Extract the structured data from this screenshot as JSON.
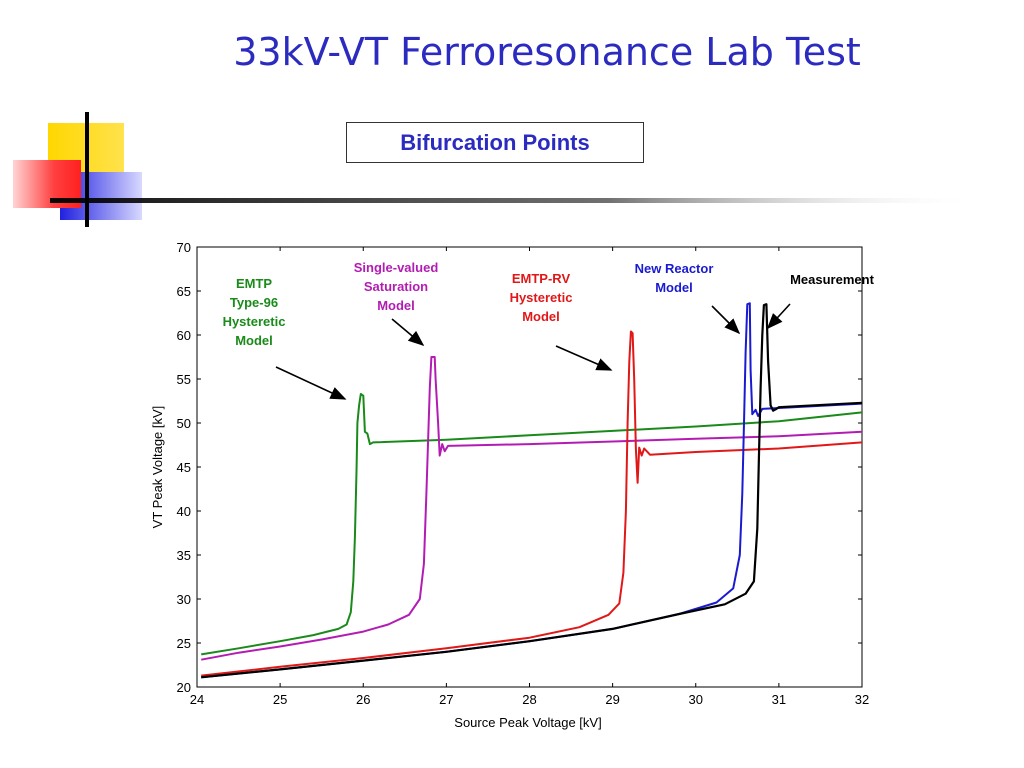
{
  "slide": {
    "title": "33kV-VT Ferroresonance Lab Test",
    "subtitle": "Bifurcation Points"
  },
  "colors": {
    "title": "#2b2bc0",
    "emtp_type96": "#1a8a1a",
    "single_valued": "#b31cb3",
    "emtp_rv": "#e01818",
    "new_reactor": "#1a1ad0",
    "measurement": "#000000"
  },
  "chart_data": {
    "type": "line",
    "xlabel": "Source Peak Voltage [kV]",
    "ylabel": "VT Peak Voltage [kV]",
    "xlim": [
      24,
      32
    ],
    "ylim": [
      20,
      70
    ],
    "xticks": [
      24,
      25,
      26,
      27,
      28,
      29,
      30,
      31,
      32
    ],
    "yticks": [
      20,
      25,
      30,
      35,
      40,
      45,
      50,
      55,
      60,
      65,
      70
    ],
    "grid": false,
    "series": [
      {
        "key": "emtp_type96",
        "color": "#1a8a1a",
        "points": [
          [
            24.05,
            23.7
          ],
          [
            24.5,
            24.4
          ],
          [
            25,
            25.2
          ],
          [
            25.4,
            25.9
          ],
          [
            25.7,
            26.6
          ],
          [
            25.8,
            27.1
          ],
          [
            25.85,
            28.5
          ],
          [
            25.88,
            32
          ],
          [
            25.9,
            37
          ],
          [
            25.92,
            45
          ],
          [
            25.93,
            50
          ],
          [
            25.95,
            52
          ],
          [
            25.97,
            53.3
          ],
          [
            26.0,
            53.1
          ],
          [
            26.02,
            49
          ],
          [
            26.05,
            48.8
          ],
          [
            26.08,
            47.6
          ],
          [
            26.12,
            47.8
          ],
          [
            27,
            48.1
          ],
          [
            28,
            48.6
          ],
          [
            29,
            49.1
          ],
          [
            30,
            49.6
          ],
          [
            31,
            50.2
          ],
          [
            32,
            51.2
          ]
        ]
      },
      {
        "key": "single_valued",
        "color": "#b31cb3",
        "points": [
          [
            24.05,
            23.1
          ],
          [
            24.5,
            23.9
          ],
          [
            25,
            24.6
          ],
          [
            25.5,
            25.4
          ],
          [
            26,
            26.3
          ],
          [
            26.3,
            27.1
          ],
          [
            26.55,
            28.2
          ],
          [
            26.68,
            30
          ],
          [
            26.73,
            34
          ],
          [
            26.76,
            42
          ],
          [
            26.78,
            48
          ],
          [
            26.8,
            54
          ],
          [
            26.82,
            57.5
          ],
          [
            26.86,
            57.5
          ],
          [
            26.87,
            55
          ],
          [
            26.9,
            50
          ],
          [
            26.92,
            46.3
          ],
          [
            26.95,
            47.6
          ],
          [
            26.98,
            46.8
          ],
          [
            27.02,
            47.4
          ],
          [
            28,
            47.6
          ],
          [
            29,
            47.9
          ],
          [
            30,
            48.2
          ],
          [
            31,
            48.5
          ],
          [
            32,
            49.0
          ]
        ]
      },
      {
        "key": "emtp_rv",
        "color": "#e01818",
        "points": [
          [
            24.05,
            21.3
          ],
          [
            25,
            22.3
          ],
          [
            26,
            23.3
          ],
          [
            27,
            24.4
          ],
          [
            28,
            25.6
          ],
          [
            28.6,
            26.8
          ],
          [
            28.95,
            28.2
          ],
          [
            29.08,
            29.5
          ],
          [
            29.13,
            33
          ],
          [
            29.16,
            40
          ],
          [
            29.18,
            50
          ],
          [
            29.2,
            57
          ],
          [
            29.22,
            60.4
          ],
          [
            29.24,
            60.2
          ],
          [
            29.26,
            55
          ],
          [
            29.28,
            47
          ],
          [
            29.3,
            43.2
          ],
          [
            29.32,
            47.2
          ],
          [
            29.35,
            46.3
          ],
          [
            29.38,
            47.1
          ],
          [
            29.45,
            46.4
          ],
          [
            30,
            46.7
          ],
          [
            31,
            47.1
          ],
          [
            32,
            47.8
          ]
        ]
      },
      {
        "key": "new_reactor",
        "color": "#1a1ad0",
        "points": [
          [
            24.05,
            21.1
          ],
          [
            25,
            22.0
          ],
          [
            26,
            23.0
          ],
          [
            27,
            24.0
          ],
          [
            28,
            25.2
          ],
          [
            29,
            26.6
          ],
          [
            29.8,
            28.3
          ],
          [
            30.25,
            29.6
          ],
          [
            30.45,
            31.2
          ],
          [
            30.53,
            35
          ],
          [
            30.56,
            42
          ],
          [
            30.58,
            50
          ],
          [
            30.6,
            58
          ],
          [
            30.62,
            63.5
          ],
          [
            30.65,
            63.6
          ],
          [
            30.66,
            56
          ],
          [
            30.68,
            51
          ],
          [
            30.72,
            51.5
          ],
          [
            30.75,
            50.8
          ],
          [
            30.8,
            51.6
          ],
          [
            31,
            51.7
          ],
          [
            32,
            52.2
          ]
        ]
      },
      {
        "key": "measurement",
        "color": "#000000",
        "points": [
          [
            24.05,
            21.1
          ],
          [
            25,
            22.0
          ],
          [
            26,
            23.0
          ],
          [
            27,
            24.0
          ],
          [
            28,
            25.2
          ],
          [
            29,
            26.6
          ],
          [
            29.8,
            28.3
          ],
          [
            30.35,
            29.4
          ],
          [
            30.6,
            30.6
          ],
          [
            30.7,
            32
          ],
          [
            30.74,
            38
          ],
          [
            30.76,
            46
          ],
          [
            30.78,
            54
          ],
          [
            30.8,
            60
          ],
          [
            30.82,
            63.4
          ],
          [
            30.85,
            63.5
          ],
          [
            30.87,
            57
          ],
          [
            30.9,
            52
          ],
          [
            30.93,
            51.4
          ],
          [
            30.97,
            51.6
          ],
          [
            31,
            51.8
          ],
          [
            32,
            52.3
          ]
        ]
      }
    ],
    "annotations": [
      {
        "key": "emtp_type96",
        "lines": [
          "EMTP",
          "Type-96",
          "Hysteretic",
          "Model"
        ],
        "color": "#1a8a1a"
      },
      {
        "key": "single_valued",
        "lines": [
          "Single-valued",
          "Saturation",
          "Model"
        ],
        "color": "#b31cb3"
      },
      {
        "key": "emtp_rv",
        "lines": [
          "EMTP-RV",
          "Hysteretic",
          "Model"
        ],
        "color": "#e01818"
      },
      {
        "key": "new_reactor",
        "lines": [
          "New Reactor",
          "Model"
        ],
        "color": "#1a1ad0"
      },
      {
        "key": "measurement",
        "lines": [
          "Measurement"
        ],
        "color": "#000000"
      }
    ]
  }
}
